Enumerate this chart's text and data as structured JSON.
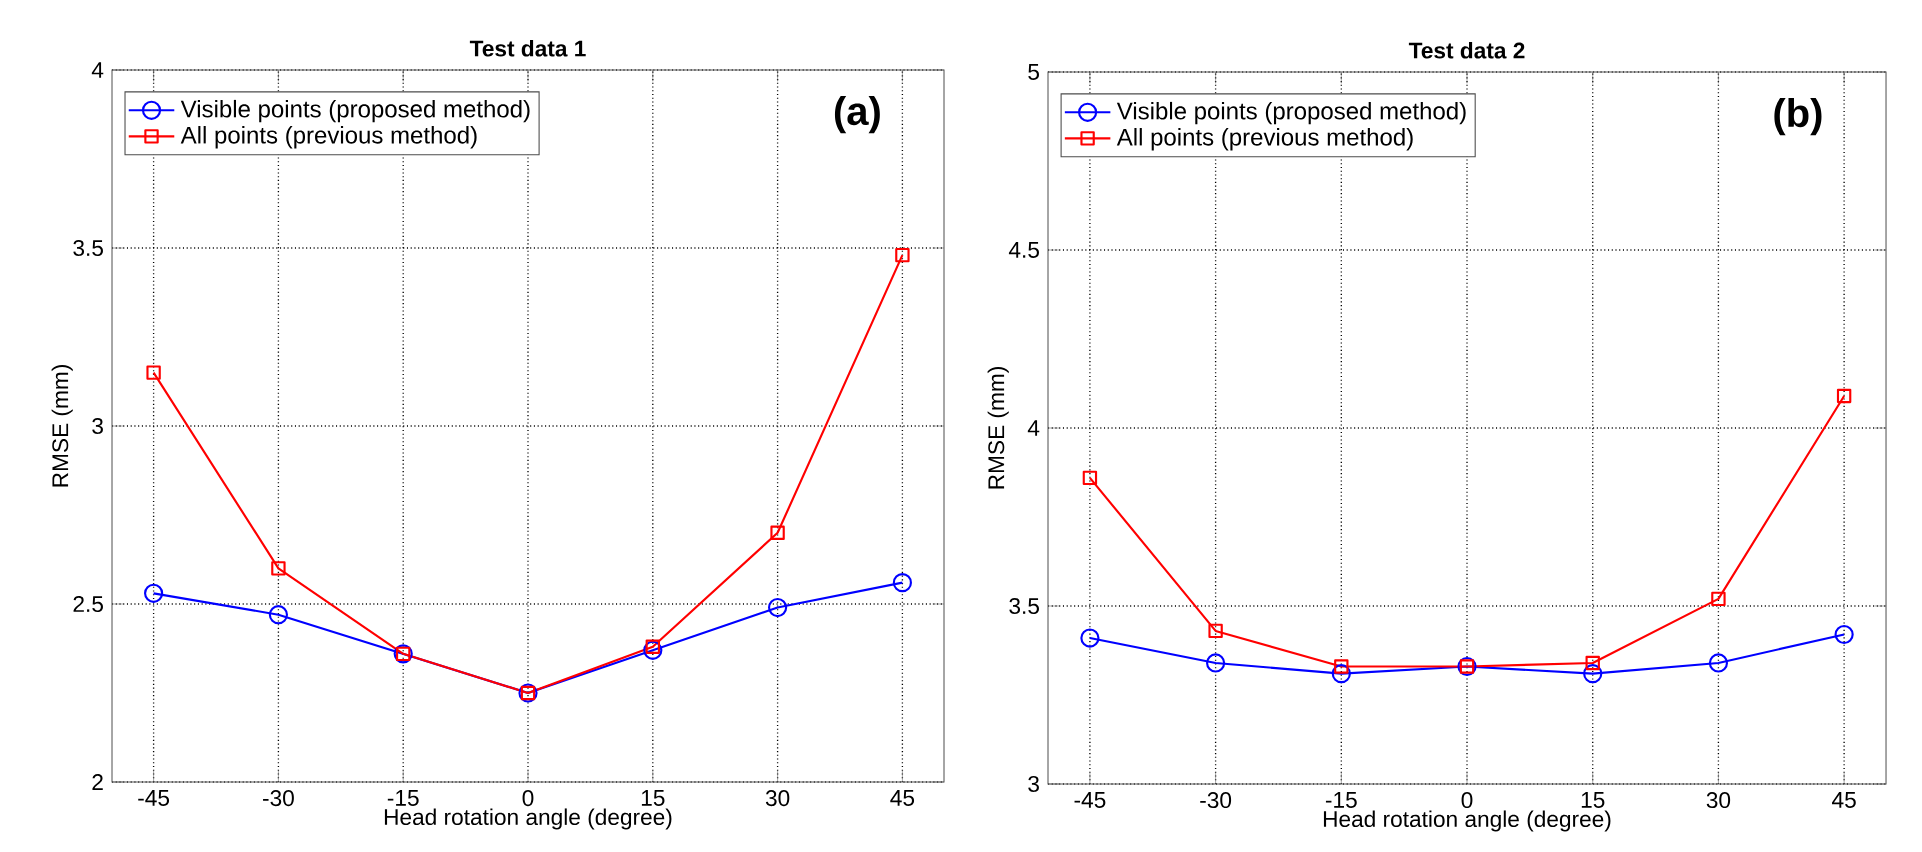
{
  "chart_data": [
    {
      "type": "line",
      "title": "Test data 1",
      "xlabel": "Head rotation angle (degree)",
      "ylabel": "RMSE (mm)",
      "annotations": [
        "(a)"
      ],
      "x": [
        -45,
        -30,
        -15,
        0,
        15,
        30,
        45
      ],
      "series": [
        {
          "name": "Visible points (proposed method)",
          "color": "#0000ff",
          "marker": "circle",
          "values": [
            2.53,
            2.47,
            2.36,
            2.25,
            2.37,
            2.49,
            2.56
          ]
        },
        {
          "name": "All points (previous method)",
          "color": "#ff0000",
          "marker": "square",
          "values": [
            3.15,
            2.6,
            2.36,
            2.25,
            2.38,
            2.7,
            3.48
          ]
        }
      ],
      "xlim": [
        -50,
        50
      ],
      "ylim": [
        2,
        4
      ],
      "xticks": [
        -45,
        -30,
        -15,
        0,
        15,
        30,
        45
      ],
      "yticks": [
        2,
        2.5,
        3,
        3.5,
        4
      ],
      "grid": true,
      "legend": "top left"
    },
    {
      "type": "line",
      "title": "Test data 2",
      "xlabel": "Head rotation angle (degree)",
      "ylabel": "RMSE (mm)",
      "annotations": [
        "(b)"
      ],
      "x": [
        -45,
        -30,
        -15,
        0,
        15,
        30,
        45
      ],
      "series": [
        {
          "name": "Visible points (proposed method)",
          "color": "#0000ff",
          "marker": "circle",
          "values": [
            3.41,
            3.34,
            3.31,
            3.33,
            3.31,
            3.34,
            3.42
          ]
        },
        {
          "name": "All points (previous method)",
          "color": "#ff0000",
          "marker": "square",
          "values": [
            3.86,
            3.43,
            3.33,
            3.33,
            3.34,
            3.52,
            4.09
          ]
        }
      ],
      "xlim": [
        -50,
        50
      ],
      "ylim": [
        3,
        5
      ],
      "xticks": [
        -45,
        -30,
        -15,
        0,
        15,
        30,
        45
      ],
      "yticks": [
        3,
        3.5,
        4,
        4.5,
        5
      ],
      "grid": true,
      "legend": "top left"
    }
  ]
}
